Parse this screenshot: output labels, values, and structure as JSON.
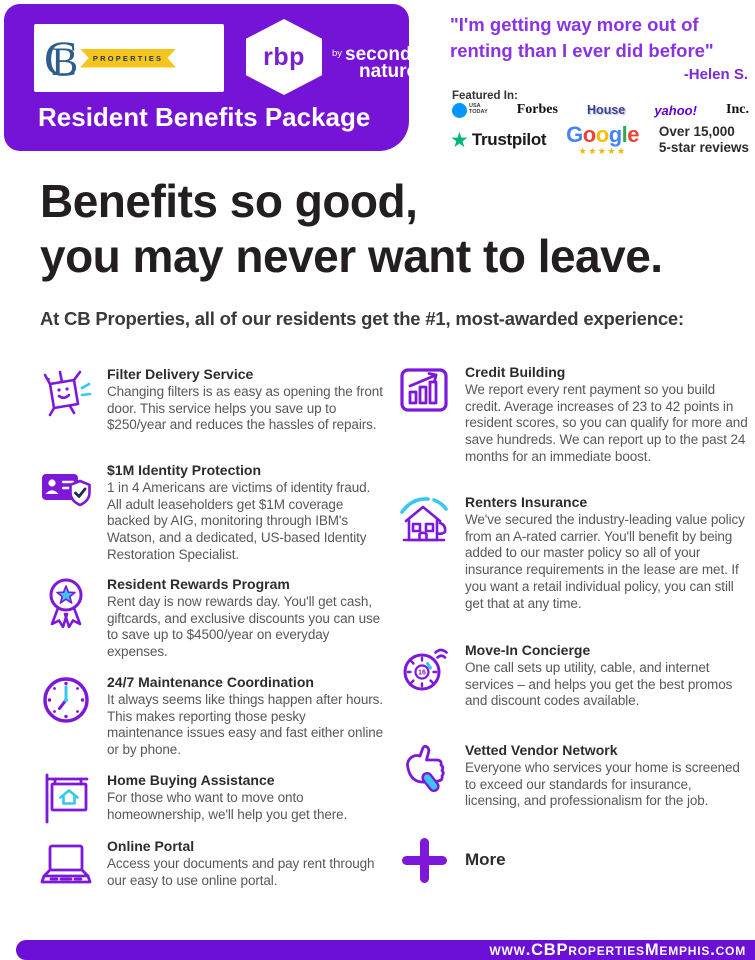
{
  "header": {
    "brand_cb": {
      "letter_c": "C",
      "letter_b": "B",
      "banner": "PROPERTIES"
    },
    "brand_rbp": {
      "logo_text": "rbp",
      "by": "by",
      "name_line1": "second",
      "name_line2": "nature"
    },
    "title": "Resident Benefits Package"
  },
  "testimonial": {
    "quote_line1": "\"I'm getting way more out of",
    "quote_line2": "renting than I ever did before\"",
    "attribution": "-Helen S."
  },
  "featured": {
    "label": "Featured In:",
    "usatoday_line1": "USA",
    "usatoday_line2": "TODAY",
    "forbes": "Forbes",
    "house": "House",
    "yahoo": "yahoo!",
    "inc": "Inc.",
    "trustpilot_star": "★",
    "trustpilot": "Trustpilot",
    "google_letters": [
      [
        "G",
        "#4285F4"
      ],
      [
        "o",
        "#EA4335"
      ],
      [
        "o",
        "#FBBC05"
      ],
      [
        "g",
        "#4285F4"
      ],
      [
        "l",
        "#34A853"
      ],
      [
        "e",
        "#EA4335"
      ]
    ],
    "google_stars": "★★★★★",
    "reviews_line1": "Over 15,000",
    "reviews_line2": "5-star reviews"
  },
  "headline": {
    "line1": "Benefits so good,",
    "line2": "you may never want to leave."
  },
  "subtitle": "At CB Properties, all of our residents get the #1, most-awarded experience:",
  "benefits": {
    "left": [
      {
        "icon": "filter-box-mascot-icon",
        "title": "Filter Delivery Service",
        "body": "Changing filters is as easy as opening the front door. This service helps you save up to $250/year and reduces the hassles of repairs."
      },
      {
        "icon": "id-shield-icon",
        "title": "$1M Identity Protection",
        "body": "1 in 4 Americans are victims of identity fraud. All adult leaseholders get $1M coverage backed by AIG, monitoring through IBM's Watson, and a dedicated, US-based Identity Restoration Specialist."
      },
      {
        "icon": "award-medal-icon",
        "title": "Resident Rewards Program",
        "body": "Rent day is now rewards day. You'll get cash, giftcards, and exclusive discounts you can use to save up to $4500/year on everyday expenses."
      },
      {
        "icon": "clock-icon",
        "title": "24/7 Maintenance Coordination",
        "body": "It always seems like things happen after hours. This makes reporting those pesky maintenance issues easy and fast either online or by phone."
      },
      {
        "icon": "home-sign-icon",
        "title": "Home Buying Assistance",
        "body": "For those who want to move onto homeownership, we'll help you get there."
      },
      {
        "icon": "laptop-icon",
        "title": "Online Portal",
        "body": "Access your documents and pay rent through our easy to use online portal."
      }
    ],
    "right": [
      {
        "icon": "credit-chart-icon",
        "title": "Credit Building",
        "body": "We report every rent payment so you build credit. Average increases of 23 to 42 points in resident scores, so you can qualify for more and save hundreds. We can report up to the past 24 months for an immediate boost."
      },
      {
        "icon": "insured-house-icon",
        "title": "Renters Insurance",
        "body": "We've secured the industry-leading value policy from an A-rated carrier. You'll benefit by being added to our master policy so all of your insurance requirements in the lease are met. If you want a retail individual policy, you can still get that at any time."
      },
      {
        "icon": "dial-timer-icon",
        "title": "Move-In Concierge",
        "body": "One call sets up utility, cable, and internet services – and helps you get the best promos and discount codes available."
      },
      {
        "icon": "thumbs-up-icon",
        "title": "Vetted Vendor Network",
        "body": "Everyone who services your home is screened to exceed our standards for insurance, licensing, and professionalism for the job."
      },
      {
        "icon": "plus-icon",
        "title": "More",
        "body": ""
      }
    ]
  },
  "footer": {
    "url": "www.CBPropertiesMemphis.com"
  },
  "colors": {
    "purple_header": "#7513D6",
    "purple_footer": "#6C0FD6",
    "quote_purple": "#8A33E6",
    "attr_purple": "#7A2BD8",
    "icon_purple": "#7D17DA",
    "cyan": "#38C6F2",
    "heading_dark": "#231F20",
    "body_gray": "#58585A",
    "title_dark": "#2C2C2E",
    "cb_navy": "#2D5C8F",
    "ribbon_yellow": "#F5C51D",
    "trustpilot_green": "#00B67A",
    "usatoday_blue": "#0098FE",
    "yahoo_purple": "#5F01D1",
    "stars_gold": "#F4B400"
  }
}
